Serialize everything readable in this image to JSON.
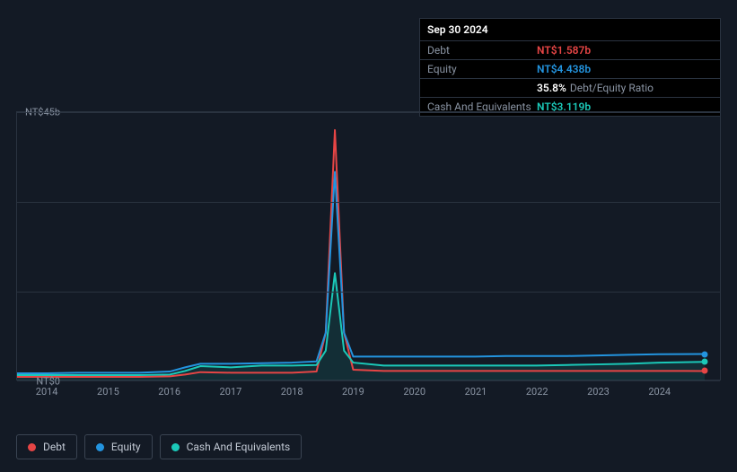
{
  "tooltip": {
    "date": "Sep 30 2024",
    "rows": [
      {
        "label": "Debt",
        "value": "NT$1.587b",
        "cls": "debt"
      },
      {
        "label": "Equity",
        "value": "NT$4.438b",
        "cls": "equity"
      },
      {
        "label": "",
        "value": "35.8%",
        "suffix": "Debt/Equity Ratio",
        "cls": "ratio-pct"
      },
      {
        "label": "Cash And Equivalents",
        "value": "NT$3.119b",
        "cls": "cash"
      }
    ]
  },
  "chart": {
    "type": "line",
    "background_color": "#131a25",
    "grid_color": "#2a3340",
    "label_fontsize": 11,
    "label_color": "#8a94a3",
    "x_start": 2013.5,
    "x_end": 2025.0,
    "x_ticks": [
      2014,
      2015,
      2016,
      2017,
      2018,
      2019,
      2020,
      2021,
      2022,
      2023,
      2024
    ],
    "y_min": 0,
    "y_max": 45,
    "y_ticks": [
      {
        "v": 0,
        "label": "NT$0"
      },
      {
        "v": 45,
        "label": "NT$45b"
      }
    ],
    "gridlines_y": [
      15,
      30,
      45
    ],
    "series": [
      {
        "name": "Debt",
        "color": "#e64545",
        "line_width": 2,
        "points": [
          [
            2013.5,
            0.6
          ],
          [
            2014,
            0.6
          ],
          [
            2014.5,
            0.6
          ],
          [
            2015,
            0.6
          ],
          [
            2015.5,
            0.6
          ],
          [
            2016,
            0.7
          ],
          [
            2016.25,
            1.0
          ],
          [
            2016.5,
            1.4
          ],
          [
            2017,
            1.3
          ],
          [
            2017.5,
            1.3
          ],
          [
            2018,
            1.3
          ],
          [
            2018.4,
            1.5
          ],
          [
            2018.55,
            8
          ],
          [
            2018.7,
            42
          ],
          [
            2018.85,
            8
          ],
          [
            2019.0,
            1.8
          ],
          [
            2019.5,
            1.6
          ],
          [
            2020,
            1.6
          ],
          [
            2020.5,
            1.6
          ],
          [
            2021,
            1.6
          ],
          [
            2021.5,
            1.6
          ],
          [
            2022,
            1.6
          ],
          [
            2022.5,
            1.6
          ],
          [
            2023,
            1.6
          ],
          [
            2023.5,
            1.6
          ],
          [
            2024,
            1.6
          ],
          [
            2024.75,
            1.587
          ]
        ]
      },
      {
        "name": "Equity",
        "color": "#2394df",
        "line_width": 2,
        "points": [
          [
            2013.5,
            1.2
          ],
          [
            2014,
            1.2
          ],
          [
            2014.5,
            1.3
          ],
          [
            2015,
            1.3
          ],
          [
            2015.5,
            1.3
          ],
          [
            2016,
            1.5
          ],
          [
            2016.25,
            2.2
          ],
          [
            2016.5,
            2.8
          ],
          [
            2017,
            2.8
          ],
          [
            2017.5,
            2.9
          ],
          [
            2018,
            3.0
          ],
          [
            2018.4,
            3.2
          ],
          [
            2018.55,
            8
          ],
          [
            2018.7,
            35
          ],
          [
            2018.85,
            8
          ],
          [
            2019.0,
            4.0
          ],
          [
            2019.5,
            4.0
          ],
          [
            2020,
            4.0
          ],
          [
            2020.5,
            4.0
          ],
          [
            2021,
            4.0
          ],
          [
            2021.5,
            4.1
          ],
          [
            2022,
            4.1
          ],
          [
            2022.5,
            4.1
          ],
          [
            2023,
            4.2
          ],
          [
            2023.5,
            4.3
          ],
          [
            2024,
            4.4
          ],
          [
            2024.75,
            4.438
          ]
        ]
      },
      {
        "name": "Cash And Equivalents",
        "color": "#1bc8b8",
        "line_width": 2,
        "area_fill": "rgba(27,200,184,0.12)",
        "points": [
          [
            2013.5,
            0.9
          ],
          [
            2014,
            0.9
          ],
          [
            2014.5,
            0.9
          ],
          [
            2015,
            0.9
          ],
          [
            2015.5,
            0.9
          ],
          [
            2016,
            1.0
          ],
          [
            2016.25,
            1.6
          ],
          [
            2016.5,
            2.4
          ],
          [
            2017,
            2.2
          ],
          [
            2017.5,
            2.5
          ],
          [
            2018,
            2.5
          ],
          [
            2018.4,
            2.6
          ],
          [
            2018.55,
            5
          ],
          [
            2018.7,
            18
          ],
          [
            2018.85,
            5
          ],
          [
            2019.0,
            3.0
          ],
          [
            2019.5,
            2.5
          ],
          [
            2020,
            2.5
          ],
          [
            2020.5,
            2.5
          ],
          [
            2021,
            2.5
          ],
          [
            2021.5,
            2.5
          ],
          [
            2022,
            2.5
          ],
          [
            2022.5,
            2.6
          ],
          [
            2023,
            2.7
          ],
          [
            2023.5,
            2.8
          ],
          [
            2024,
            3.0
          ],
          [
            2024.75,
            3.119
          ]
        ]
      }
    ],
    "legend": [
      {
        "label": "Debt",
        "color": "#e64545"
      },
      {
        "label": "Equity",
        "color": "#2394df"
      },
      {
        "label": "Cash And Equivalents",
        "color": "#1bc8b8"
      }
    ]
  }
}
